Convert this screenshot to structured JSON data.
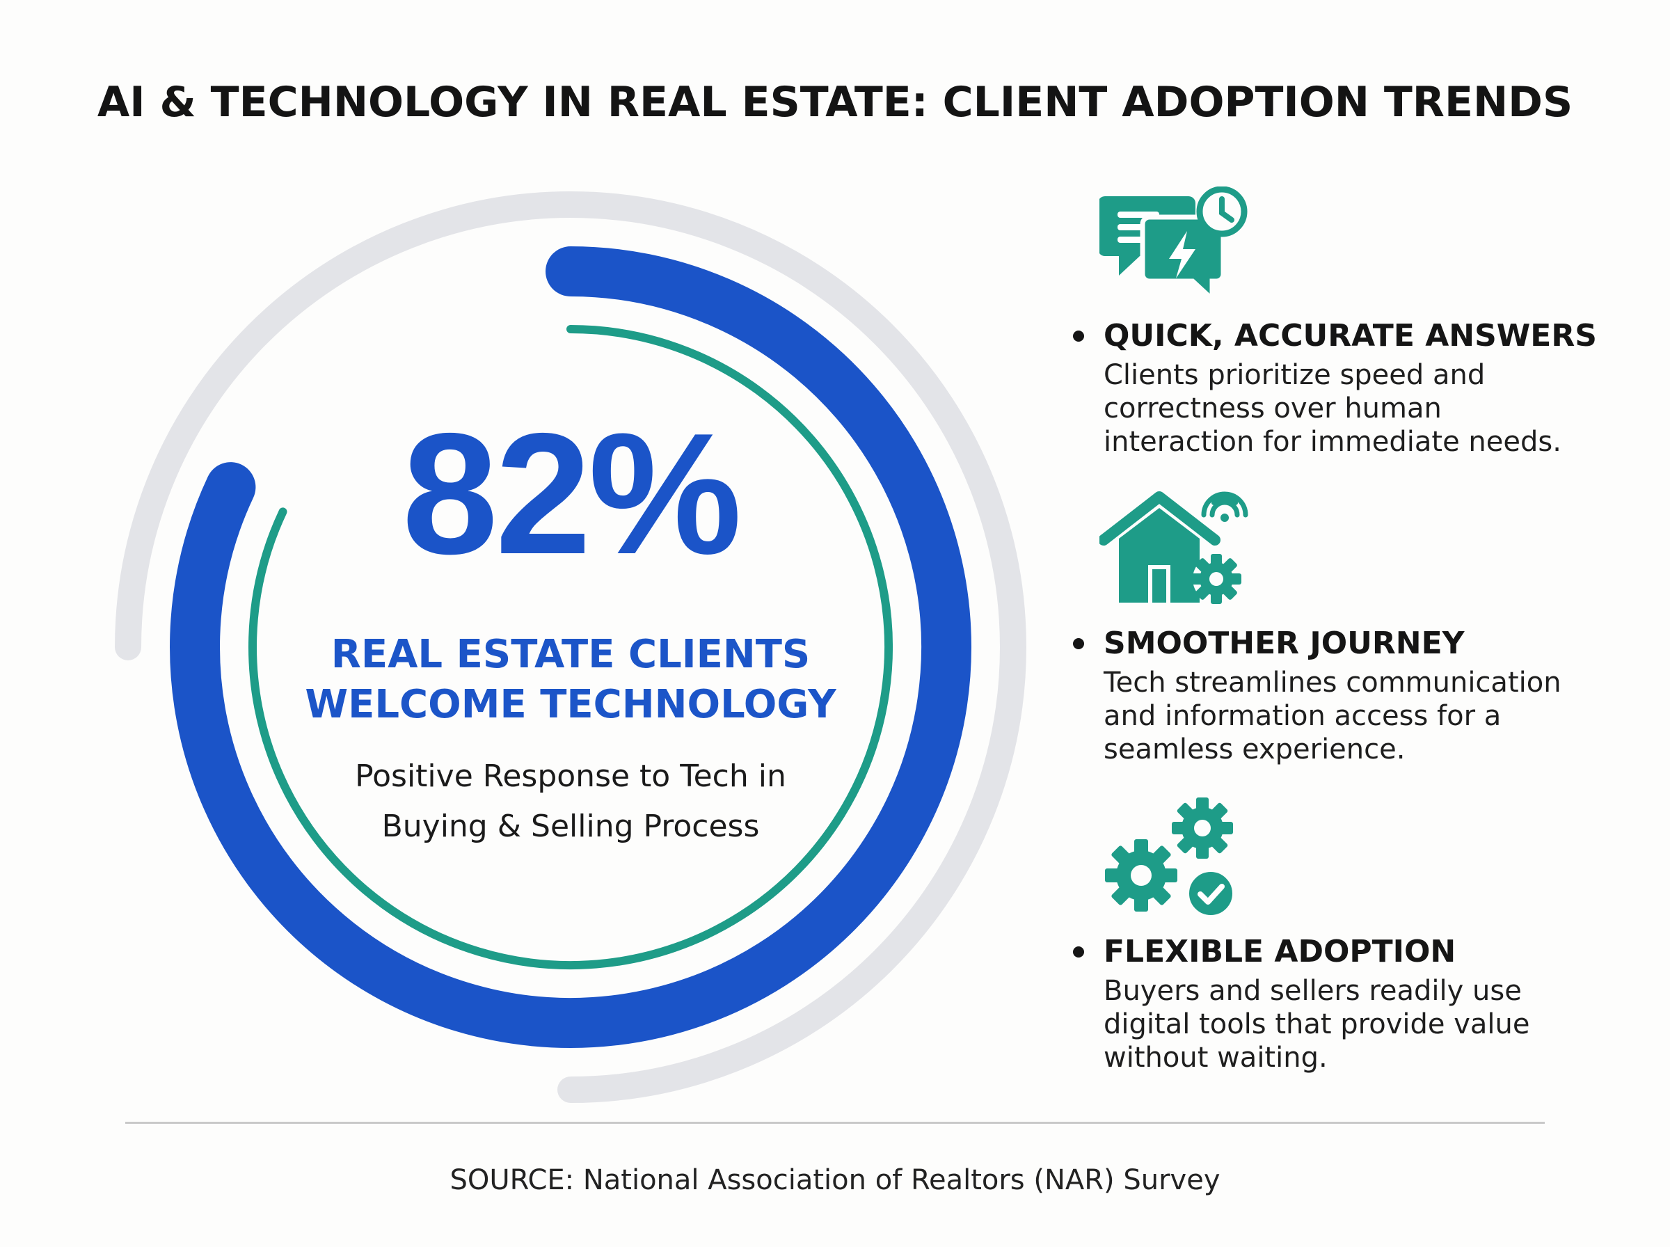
{
  "title": "AI & TECHNOLOGY IN REAL ESTATE: CLIENT ADOPTION TRENDS",
  "colors": {
    "primary_blue": "#1b54c8",
    "teal": "#1e9c88",
    "track_gray": "#e3e4e8",
    "text_dark": "#151515"
  },
  "stat": {
    "percent_label": "82%",
    "percent_value": 82,
    "headline_lines": [
      "REAL ESTATE CLIENTS",
      "WELCOME TECHNOLOGY"
    ],
    "subtext_lines": [
      "Positive Response to Tech in",
      "Buying & Selling Process"
    ]
  },
  "features": [
    {
      "icon": "chat-bubbles-clock-lightning-icon",
      "title": "QUICK, ACCURATE ANSWERS",
      "lines": [
        "Clients prioritize speed and",
        "correctness over human",
        "interaction for immediate needs."
      ]
    },
    {
      "icon": "smart-home-gear-icon",
      "title": "SMOOTHER JOURNEY",
      "lines": [
        "Tech streamlines communication",
        "and information access for a",
        "seamless experience."
      ]
    },
    {
      "icon": "gears-checkmark-icon",
      "title": "FLEXIBLE ADOPTION",
      "lines": [
        "Buyers and sellers readily use",
        "digital tools that provide value",
        "without waiting."
      ]
    }
  ],
  "source": "SOURCE: National Association of Realtors (NAR) Survey"
}
